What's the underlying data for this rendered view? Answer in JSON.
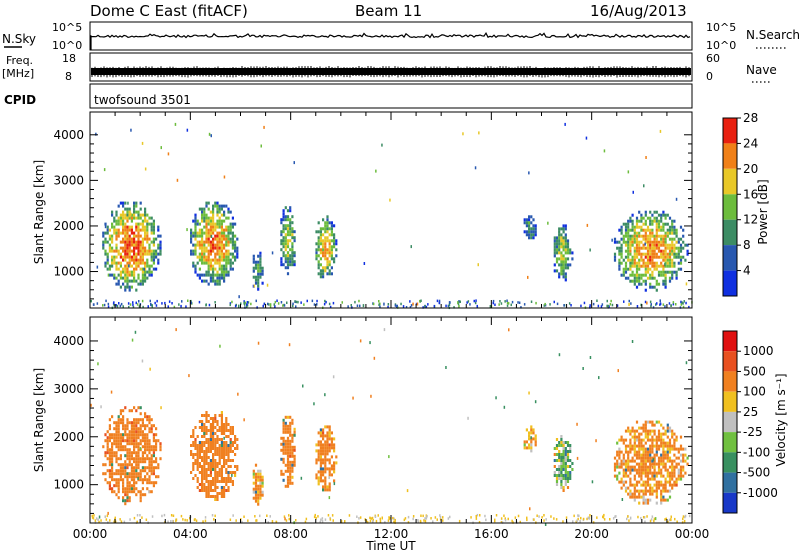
{
  "header": {
    "station": "Dome C East (fitACF)",
    "beam": "Beam 11",
    "date": "16/Aug/2013"
  },
  "strips": {
    "nsky_label": "N.Sky",
    "nsky_top": "10^5",
    "nsky_bottom": "10^0",
    "nsearch_label": "N.Search",
    "nsearch_top": "10^5",
    "nsearch_bottom": "10^0",
    "freq_label_1": "Freq.",
    "freq_label_2": "[MHz]",
    "freq_top": "18",
    "freq_bottom": "8",
    "nave_label": "Nave",
    "nave_top": "60",
    "nave_bottom": "0",
    "cpid_label": "CPID",
    "cpid_value": "twofsound 3501"
  },
  "axes": {
    "ylabel": "Slant Range [km]",
    "xlabel": "Time UT",
    "xticks": [
      "00:00",
      "04:00",
      "08:00",
      "12:00",
      "16:00",
      "20:00",
      "00:00"
    ],
    "yticks": [
      "1000",
      "2000",
      "3000",
      "4000"
    ]
  },
  "chart_data": [
    {
      "type": "heatmap",
      "title": "",
      "quantity": "Power",
      "colorbar_label": "Power [dB]",
      "colorbar_ticks": [
        "4",
        "8",
        "12",
        "16",
        "20",
        "24",
        "28"
      ],
      "colorbar_colors": [
        "#1030e0",
        "#2858b0",
        "#3c8c64",
        "#6cbc3c",
        "#e8c828",
        "#f08018",
        "#e82010"
      ],
      "xlabel": "Time UT",
      "ylabel": "Slant Range [km]",
      "x_range_hours": [
        0,
        24
      ],
      "ylim_km": [
        200,
        4500
      ],
      "regions": [
        {
          "t0": 0.4,
          "t1": 2.8,
          "r0": 600,
          "r1": 2600,
          "core": 26
        },
        {
          "t0": 3.9,
          "t1": 5.9,
          "r0": 700,
          "r1": 2600,
          "core": 24
        },
        {
          "t0": 6.4,
          "t1": 6.9,
          "r0": 600,
          "r1": 1500,
          "core": 14
        },
        {
          "t0": 7.5,
          "t1": 8.2,
          "r0": 900,
          "r1": 2500,
          "core": 18
        },
        {
          "t0": 8.9,
          "t1": 9.8,
          "r0": 800,
          "r1": 2300,
          "core": 22
        },
        {
          "t0": 17.2,
          "t1": 17.8,
          "r0": 1700,
          "r1": 2300,
          "core": 12
        },
        {
          "t0": 18.4,
          "t1": 19.2,
          "r0": 800,
          "r1": 2100,
          "core": 18
        },
        {
          "t0": 20.8,
          "t1": 23.8,
          "r0": 600,
          "r1": 2400,
          "core": 24
        }
      ]
    },
    {
      "type": "heatmap",
      "title": "",
      "quantity": "Velocity",
      "colorbar_label": "Velocity [m s⁻¹]",
      "colorbar_ticks": [
        "1000",
        "500",
        "100",
        "25",
        "-25",
        "-100",
        "-500",
        "-1000"
      ],
      "colorbar_colors": [
        "#1838c8",
        "#3070a0",
        "#389060",
        "#70c040",
        "#c0c0c0",
        "#f0c020",
        "#f08020",
        "#e85020",
        "#e01010"
      ],
      "xlabel": "Time UT",
      "ylabel": "Slant Range [km]",
      "x_range_hours": [
        0,
        24
      ],
      "ylim_km": [
        200,
        4500
      ],
      "regions": [
        {
          "t0": 0.4,
          "t1": 2.8,
          "r0": 600,
          "r1": 2700,
          "core": -350
        },
        {
          "t0": 3.9,
          "t1": 5.9,
          "r0": 700,
          "r1": 2600,
          "core": -300
        },
        {
          "t0": 6.4,
          "t1": 6.9,
          "r0": 600,
          "r1": 1500,
          "core": -120
        },
        {
          "t0": 7.5,
          "t1": 8.2,
          "r0": 900,
          "r1": 2500,
          "core": -250
        },
        {
          "t0": 8.9,
          "t1": 9.8,
          "r0": 800,
          "r1": 2300,
          "core": -200
        },
        {
          "t0": 17.2,
          "t1": 17.8,
          "r0": 1700,
          "r1": 2300,
          "core": -50
        },
        {
          "t0": 18.4,
          "t1": 19.2,
          "r0": 800,
          "r1": 2100,
          "core": 60
        },
        {
          "t0": 20.8,
          "t1": 23.8,
          "r0": 600,
          "r1": 2400,
          "core": -150
        }
      ]
    }
  ]
}
